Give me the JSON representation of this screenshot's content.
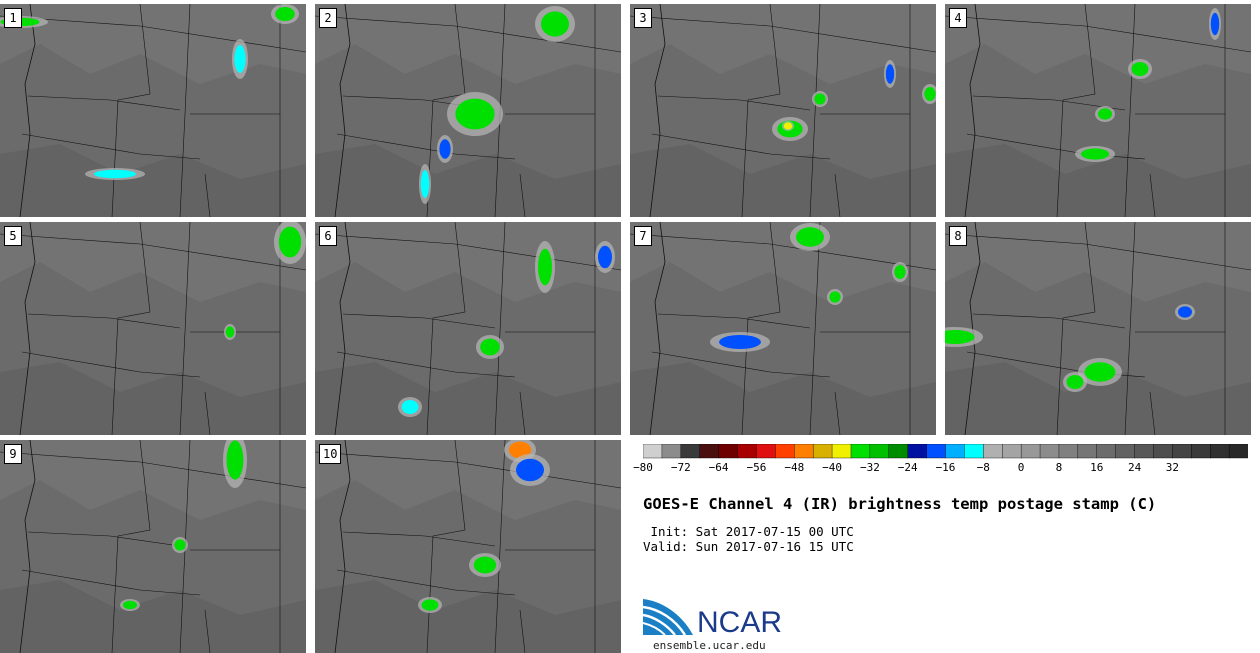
{
  "panels": [
    {
      "label": "1"
    },
    {
      "label": "2"
    },
    {
      "label": "3"
    },
    {
      "label": "4"
    },
    {
      "label": "5"
    },
    {
      "label": "6"
    },
    {
      "label": "7"
    },
    {
      "label": "8"
    },
    {
      "label": "9"
    },
    {
      "label": "10"
    }
  ],
  "colorbar": {
    "tick_labels": [
      "−80",
      "−72",
      "−64",
      "−56",
      "−48",
      "−40",
      "−32",
      "−24",
      "−16",
      "−8",
      "0",
      "8",
      "16",
      "24",
      "32"
    ],
    "colors": [
      "#cfcfcf",
      "#8c8c8c",
      "#3a3a3a",
      "#4a1010",
      "#6e0000",
      "#a80000",
      "#e01010",
      "#ff4000",
      "#ff8000",
      "#d8b000",
      "#f0f000",
      "#00e000",
      "#00c000",
      "#008c00",
      "#0010a0",
      "#0050ff",
      "#00b0ff",
      "#00ffff",
      "#b0b0b0",
      "#a4a4a4",
      "#989898",
      "#8c8c8c",
      "#808080",
      "#767676",
      "#6c6c6c",
      "#626262",
      "#585858",
      "#4e4e4e",
      "#444444",
      "#3a3a3a",
      "#303030",
      "#282828"
    ]
  },
  "title": "GOES-E Channel 4 (IR) brightness temp postage stamp (C)",
  "init_line": " Init: Sat 2017-07-15 00 UTC",
  "valid_line": "Valid: Sun 2017-07-16 15 UTC",
  "logo": {
    "text": "NCAR"
  },
  "site": "ensemble.ucar.edu"
}
